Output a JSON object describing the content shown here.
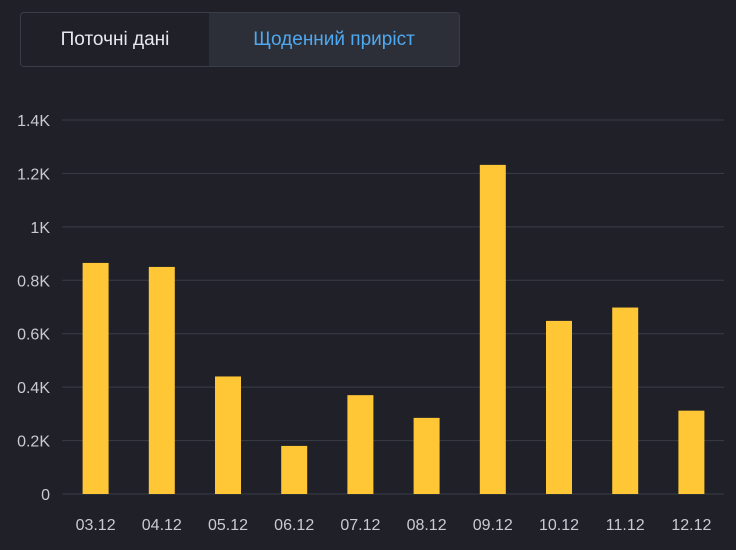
{
  "tabs": {
    "current_label": "Поточні дані",
    "daily_label": "Щоденний приріст",
    "active": "daily"
  },
  "colors": {
    "background": "#1f2028",
    "bar": "#ffc636",
    "grid": "#3a3d47",
    "tab_active_text": "#4fa9f0"
  },
  "chart_data": {
    "type": "bar",
    "categories": [
      "03.12",
      "04.12",
      "05.12",
      "06.12",
      "07.12",
      "08.12",
      "09.12",
      "10.12",
      "11.12",
      "12.12"
    ],
    "values": [
      865,
      850,
      440,
      180,
      370,
      285,
      1232,
      648,
      698,
      312
    ],
    "ylim": [
      0,
      1400
    ],
    "yticks": [
      0,
      200,
      400,
      600,
      800,
      1000,
      1200,
      1400
    ],
    "ytick_labels": [
      "0",
      "0.2K",
      "0.4K",
      "0.6K",
      "0.8K",
      "1K",
      "1.2K",
      "1.4K"
    ],
    "grid": true,
    "legend": "none"
  }
}
